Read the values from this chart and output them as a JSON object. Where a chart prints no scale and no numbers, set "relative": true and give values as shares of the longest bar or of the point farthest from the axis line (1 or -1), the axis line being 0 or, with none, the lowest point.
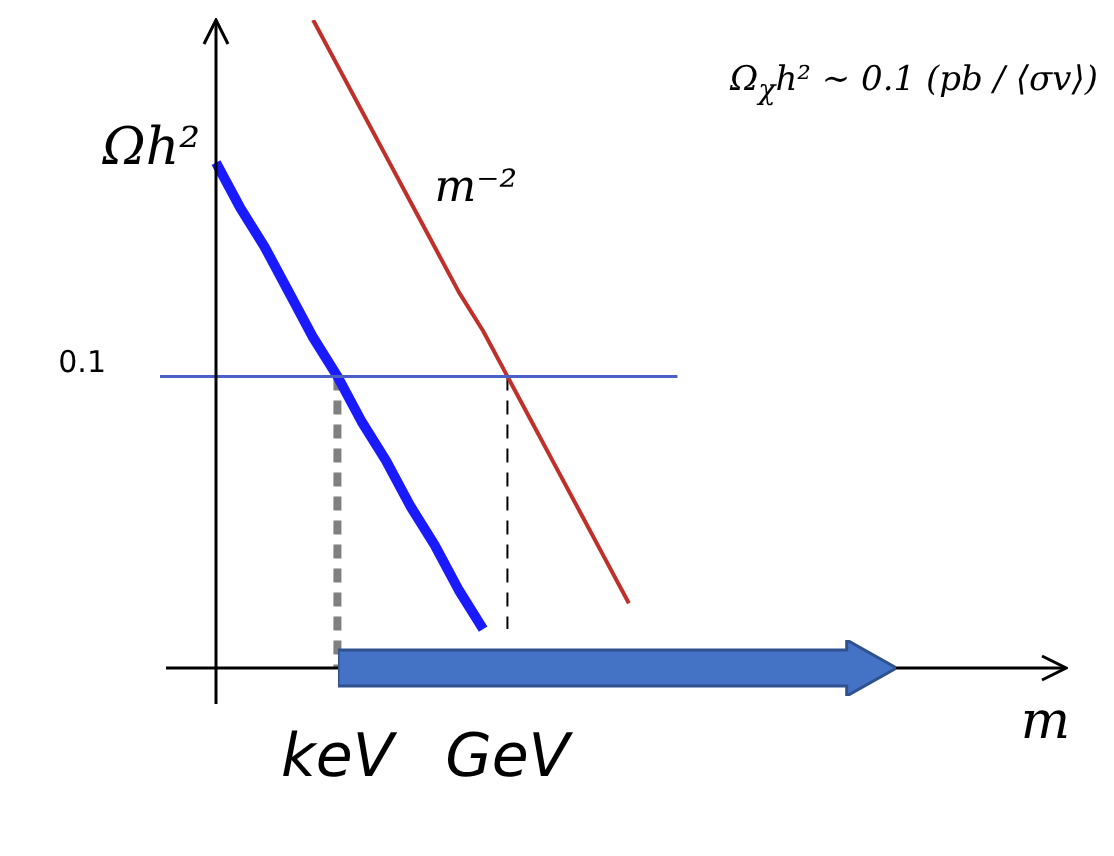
{
  "chart_data": {
    "type": "line",
    "relative": true,
    "marker": "none",
    "legend": false,
    "ylabel": "Ωh²",
    "xlabel": "m",
    "categories": [
      null,
      null,
      null,
      null,
      null,
      "keV",
      null,
      null,
      null,
      null,
      null,
      null,
      "GeV",
      null,
      null,
      null,
      null,
      null,
      null,
      null,
      null,
      null,
      null,
      null,
      null,
      null,
      null,
      null,
      null,
      null,
      null,
      null,
      null,
      null,
      null,
      null
    ],
    "series": [
      {
        "color": "#1a1aff",
        "values": [
          0.78,
          0.71,
          0.65,
          0.58,
          0.51,
          0.45,
          0.38,
          0.32,
          0.25,
          0.19,
          0.12,
          0.06,
          null,
          null,
          null,
          null,
          null,
          null,
          null,
          null,
          null,
          null,
          null,
          null,
          null,
          null,
          null,
          null,
          null,
          null,
          null,
          null,
          null,
          null,
          null,
          null
        ]
      },
      {
        "color": "#c0302a",
        "values": [
          null,
          null,
          null,
          null,
          1,
          0.93,
          0.86,
          0.79,
          0.72,
          0.65,
          0.58,
          0.52,
          0.45,
          0.38,
          0.31,
          0.24,
          0.17,
          0.1,
          null,
          null,
          null,
          null,
          null,
          null,
          null,
          null,
          null,
          null,
          null,
          null,
          null,
          null,
          null,
          null,
          null,
          null
        ]
      },
      {
        "color": "#808080",
        "line_style": "dashed",
        "x": [
          "keV",
          "keV"
        ],
        "values": [
          0.45,
          0
        ]
      },
      {
        "color": "#000000",
        "line_style": "dashed",
        "x": [
          "GeV",
          "GeV"
        ],
        "values": [
          0.45,
          0.06
        ]
      }
    ],
    "ref_lines": [
      {
        "axis": "y",
        "value": 0.45,
        "color": "#4a5fc8"
      }
    ],
    "annotations": [
      "Ω$_{χ}$h² ∼ 0.1 (pb / ⟨σv⟩)",
      "m⁻²",
      "0.1"
    ]
  }
}
